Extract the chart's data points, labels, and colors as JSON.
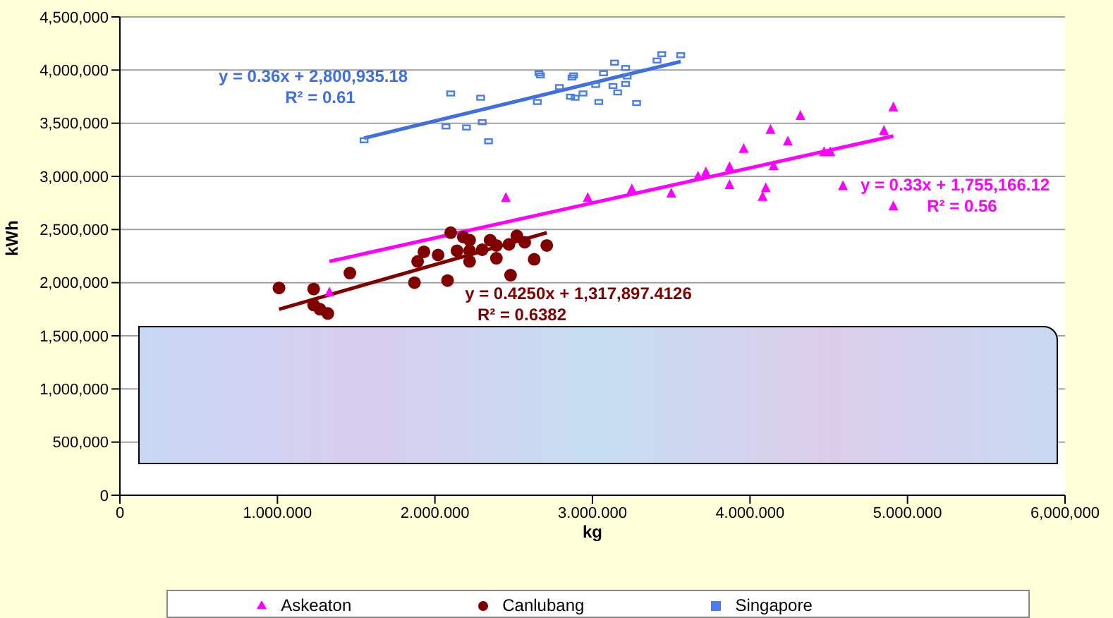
{
  "chart_data": {
    "type": "scatter",
    "xlabel": "kg",
    "ylabel": "kWh",
    "xlim": [
      0,
      6000000
    ],
    "xticks": [
      0,
      {
        "value": 1000000,
        "label": "1.000.000"
      },
      {
        "value": 2000000,
        "label": "2.000.000"
      },
      {
        "value": 3000000,
        "label": "3.000.000"
      },
      {
        "value": 4000000,
        "label": "4.000.000"
      },
      {
        "value": 5000000,
        "label": "5.000.000"
      },
      {
        "value": 6000000,
        "label": "6,000,000"
      }
    ],
    "ylim": [
      0,
      4500000
    ],
    "yticks": [
      0,
      {
        "value": 500000,
        "label": "500,000"
      },
      {
        "value": 1000000,
        "label": "1,000,000"
      },
      {
        "value": 1500000,
        "label": "1,500,000"
      },
      {
        "value": 2000000,
        "label": "2,000,000"
      },
      {
        "value": 2500000,
        "label": "2,500,000"
      },
      {
        "value": 3000000,
        "label": "3,000,000"
      },
      {
        "value": 3500000,
        "label": "3,500,000"
      },
      {
        "value": 4000000,
        "label": "4,000,000"
      },
      {
        "value": 4500000,
        "label": "4,500,000"
      }
    ],
    "grid": "y",
    "legend": "bottom",
    "series": [
      {
        "name": "Askeaton",
        "marker": "triangle",
        "color": "#ff00ff",
        "x": [
          1330000,
          2450000,
          2970000,
          3250000,
          3500000,
          3670000,
          3720000,
          3870000,
          3870000,
          3960000,
          4080000,
          4100000,
          4130000,
          4150000,
          4240000,
          4320000,
          4470000,
          4510000,
          4590000,
          4850000,
          4910000,
          4910000
        ],
        "values": [
          1910000,
          2800000,
          2800000,
          2880000,
          2840000,
          3000000,
          3040000,
          3090000,
          2920000,
          3260000,
          2810000,
          2890000,
          3440000,
          3100000,
          3330000,
          3570000,
          3230000,
          3230000,
          2910000,
          3430000,
          3650000,
          2720000
        ]
      },
      {
        "name": "Canlubang",
        "marker": "circle",
        "color": "#800000",
        "x": [
          1010000,
          1230000,
          1230000,
          1270000,
          1320000,
          1460000,
          1870000,
          1890000,
          1930000,
          2020000,
          2080000,
          2100000,
          2140000,
          2180000,
          2220000,
          2220000,
          2220000,
          2300000,
          2350000,
          2390000,
          2390000,
          2470000,
          2480000,
          2520000,
          2570000,
          2630000,
          2710000
        ],
        "values": [
          1950000,
          1940000,
          1790000,
          1750000,
          1710000,
          2090000,
          2000000,
          2200000,
          2290000,
          2260000,
          2020000,
          2470000,
          2300000,
          2430000,
          2400000,
          2300000,
          2200000,
          2310000,
          2400000,
          2350000,
          2230000,
          2360000,
          2070000,
          2440000,
          2380000,
          2220000,
          2350000
        ]
      },
      {
        "name": "Singapore",
        "marker": "square",
        "color": "#4a7de8",
        "x": [
          1550000,
          2100000,
          2290000,
          2070000,
          2200000,
          2300000,
          2340000,
          2660000,
          2670000,
          2650000,
          2790000,
          2870000,
          2880000,
          2860000,
          2890000,
          2940000,
          3020000,
          3040000,
          3070000,
          3130000,
          3140000,
          3160000,
          3210000,
          3210000,
          3220000,
          3280000,
          3410000,
          3440000,
          3560000
        ],
        "values": [
          3340000,
          3780000,
          3740000,
          3470000,
          3460000,
          3510000,
          3330000,
          3970000,
          3950000,
          3700000,
          3840000,
          3930000,
          3950000,
          3750000,
          3740000,
          3780000,
          3860000,
          3700000,
          3970000,
          3850000,
          4070000,
          3790000,
          3870000,
          4020000,
          3940000,
          3690000,
          4090000,
          4150000,
          4140000
        ]
      },
      {
        "type": "line",
        "color": "#3f6fe0",
        "x": [
          1550000,
          3560000
        ],
        "values": [
          3360000,
          4080000
        ]
      },
      {
        "type": "line",
        "color": "#ff00ff",
        "x": [
          1330000,
          4910000
        ],
        "values": [
          2200000,
          3380000
        ]
      },
      {
        "type": "line",
        "color": "#800000",
        "x": [
          1010000,
          2710000
        ],
        "values": [
          1750000,
          2470000
        ]
      }
    ],
    "annotations": [
      "y = 0.36x + 2,800,935.18\nR² = 0.61",
      "y = 0.33x + 1,755,166.12\nR² = 0.56",
      "y = 0.4250x + 1,317,897.4126\nR² = 0.6382"
    ]
  }
}
